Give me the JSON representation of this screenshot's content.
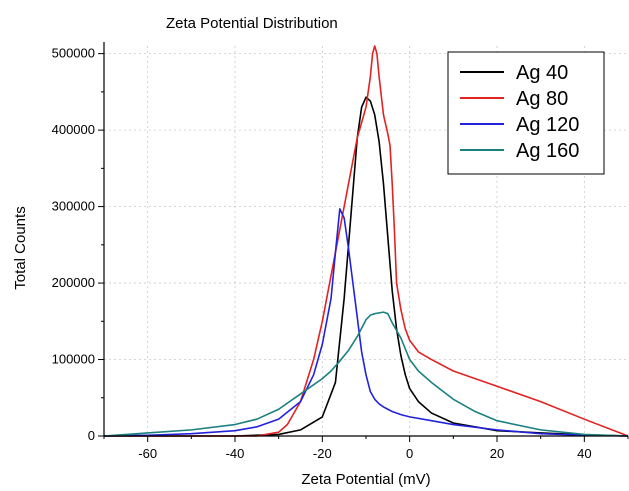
{
  "chart_data": {
    "type": "line",
    "title": "Zeta Potential Distribution",
    "xlabel": "Zeta Potential (mV)",
    "ylabel": "Total Counts",
    "xlim": [
      -70,
      50
    ],
    "ylim": [
      0,
      510000
    ],
    "xticks": [
      -60,
      -40,
      -20,
      0,
      20,
      40
    ],
    "xtick_labels": [
      "-60",
      "-40",
      "-20",
      "0",
      "20",
      "40"
    ],
    "yticks": [
      0,
      100000,
      200000,
      300000,
      400000,
      500000
    ],
    "ytick_labels": [
      "0",
      "100000",
      "200000",
      "300000",
      "400000",
      "500000"
    ],
    "grid": true,
    "legend_position": "top-right",
    "series": [
      {
        "name": "Ag 40",
        "color": "#000000",
        "x": [
          -70,
          -40,
          -30,
          -25,
          -20,
          -17,
          -15,
          -13,
          -12,
          -11,
          -10,
          -9,
          -8,
          -7,
          -6,
          -5,
          -4,
          -3,
          -2,
          -1,
          0,
          2,
          5,
          10,
          20,
          30,
          40,
          50
        ],
        "y": [
          0,
          0,
          2000,
          8000,
          25000,
          70000,
          180000,
          320000,
          390000,
          430000,
          443000,
          438000,
          420000,
          385000,
          330000,
          260000,
          190000,
          140000,
          105000,
          80000,
          62000,
          45000,
          30000,
          17000,
          7000,
          4000,
          1500,
          0
        ]
      },
      {
        "name": "Ag 80",
        "color": "#e32222",
        "x": [
          -70,
          -35,
          -30,
          -28,
          -25,
          -22,
          -20,
          -18,
          -16,
          -14,
          -12,
          -10,
          -9,
          -8.5,
          -8,
          -7.5,
          -7,
          -6,
          -5,
          -4.5,
          -4,
          -3.5,
          -3,
          -2,
          -1,
          0,
          2,
          5,
          10,
          20,
          30,
          40,
          50
        ],
        "y": [
          0,
          0,
          5000,
          15000,
          45000,
          100000,
          150000,
          210000,
          270000,
          330000,
          390000,
          430000,
          470000,
          500000,
          510000,
          500000,
          470000,
          420000,
          395000,
          380000,
          330000,
          270000,
          200000,
          165000,
          140000,
          125000,
          110000,
          100000,
          85000,
          65000,
          45000,
          22000,
          0
        ]
      },
      {
        "name": "Ag 120",
        "color": "#2222dd",
        "x": [
          -70,
          -60,
          -50,
          -40,
          -35,
          -30,
          -25,
          -22,
          -20,
          -18,
          -17,
          -16,
          -15,
          -14,
          -13,
          -12,
          -11,
          -10,
          -9,
          -8,
          -7,
          -6,
          -5,
          -4,
          -2,
          0,
          5,
          10,
          20,
          30,
          40,
          50
        ],
        "y": [
          0,
          1000,
          3000,
          7000,
          12000,
          22000,
          45000,
          80000,
          120000,
          180000,
          240000,
          297000,
          285000,
          245000,
          200000,
          155000,
          110000,
          80000,
          58000,
          48000,
          42000,
          38000,
          35000,
          32000,
          28000,
          25000,
          20000,
          15000,
          8000,
          3000,
          1000,
          0
        ]
      },
      {
        "name": "Ag 160",
        "color": "#1a8080",
        "x": [
          -70,
          -60,
          -50,
          -40,
          -35,
          -30,
          -25,
          -20,
          -18,
          -16,
          -14,
          -12,
          -10,
          -9,
          -8,
          -7,
          -6,
          -5,
          -4,
          -2,
          0,
          2,
          5,
          10,
          15,
          20,
          30,
          40,
          50
        ],
        "y": [
          0,
          4000,
          8000,
          15000,
          22000,
          35000,
          55000,
          75000,
          85000,
          98000,
          112000,
          130000,
          152000,
          158000,
          160000,
          161000,
          162000,
          160000,
          148000,
          128000,
          100000,
          85000,
          70000,
          48000,
          32000,
          20000,
          8000,
          2000,
          0
        ]
      }
    ]
  }
}
